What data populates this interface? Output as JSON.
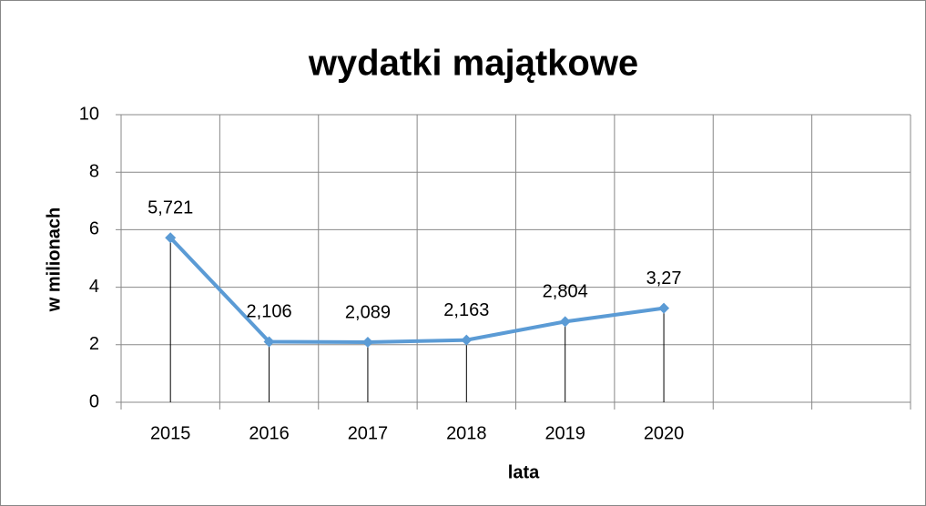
{
  "chart_data": {
    "type": "line",
    "title": "wydatki majątkowe",
    "x_label": "lata",
    "y_label": "w milionach",
    "categories": [
      "2015",
      "2016",
      "2017",
      "2018",
      "2019",
      "2020",
      null,
      null
    ],
    "series": [
      {
        "name": "wydatki majątkowe",
        "color": "#5b9bd5",
        "values": [
          5.721,
          2.106,
          2.089,
          2.163,
          2.804,
          3.27,
          null,
          null
        ],
        "value_labels": [
          "5,721",
          "2,106",
          "2,089",
          "2,163",
          "2,804",
          "3,27",
          null,
          null
        ]
      }
    ],
    "ylim": [
      0,
      10
    ],
    "yticks": [
      0,
      2,
      4,
      6,
      8,
      10
    ],
    "grid": true,
    "drop_lines": true
  }
}
